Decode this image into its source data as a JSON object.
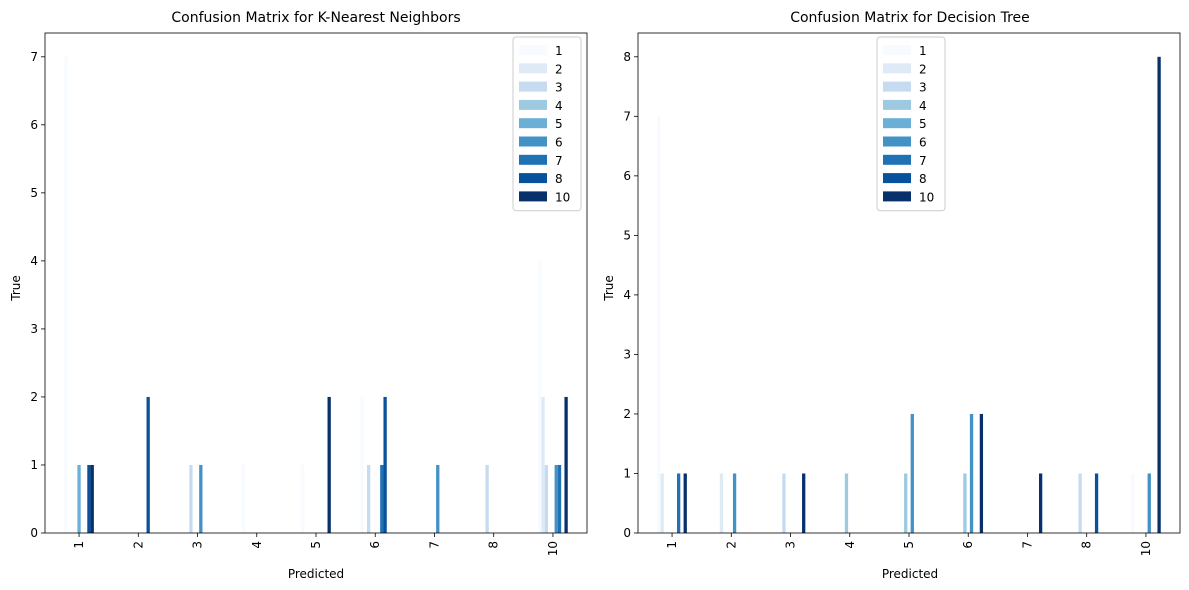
{
  "chart_data": [
    {
      "type": "bar",
      "title": "Confusion Matrix for K-Nearest Neighbors",
      "xlabel": "Predicted",
      "ylabel": "True",
      "categories": [
        "1",
        "2",
        "3",
        "4",
        "5",
        "6",
        "7",
        "8",
        "10"
      ],
      "ylim": [
        0,
        7.35
      ],
      "yticks": [
        0,
        1,
        2,
        3,
        4,
        5,
        6,
        7
      ],
      "legend_position": "top-right",
      "series": [
        {
          "name": "1",
          "color": "#f7fbff",
          "values": [
            7,
            0,
            0,
            1,
            1,
            2,
            0,
            0,
            4
          ]
        },
        {
          "name": "2",
          "color": "#deebf7",
          "values": [
            0,
            0,
            0,
            0,
            0,
            0,
            0,
            0,
            2
          ]
        },
        {
          "name": "3",
          "color": "#c6dbef",
          "values": [
            0,
            0,
            1,
            0,
            0,
            1,
            0,
            1,
            1
          ]
        },
        {
          "name": "4",
          "color": "#9ecae1",
          "values": [
            0,
            0,
            0,
            0,
            0,
            0,
            0,
            0,
            0
          ]
        },
        {
          "name": "5",
          "color": "#6baed6",
          "values": [
            1,
            0,
            0,
            0,
            0,
            0,
            0,
            0,
            0
          ]
        },
        {
          "name": "6",
          "color": "#4292c6",
          "values": [
            0,
            0,
            1,
            0,
            0,
            0,
            1,
            0,
            1
          ]
        },
        {
          "name": "7",
          "color": "#2171b5",
          "values": [
            0,
            0,
            0,
            0,
            0,
            1,
            0,
            0,
            1
          ]
        },
        {
          "name": "8",
          "color": "#08519c",
          "values": [
            1,
            2,
            0,
            0,
            0,
            2,
            0,
            0,
            0
          ]
        },
        {
          "name": "10",
          "color": "#08306b",
          "values": [
            1,
            0,
            0,
            0,
            2,
            0,
            0,
            0,
            2
          ]
        }
      ]
    },
    {
      "type": "bar",
      "title": "Confusion Matrix for Decision Tree",
      "xlabel": "Predicted",
      "ylabel": "True",
      "categories": [
        "1",
        "2",
        "3",
        "4",
        "5",
        "6",
        "7",
        "8",
        "10"
      ],
      "ylim": [
        0,
        8.4
      ],
      "yticks": [
        0,
        1,
        2,
        3,
        4,
        5,
        6,
        7,
        8
      ],
      "legend_position": "upper center",
      "series": [
        {
          "name": "1",
          "color": "#f7fbff",
          "values": [
            7,
            0,
            0,
            0,
            0,
            0,
            0,
            0,
            1
          ]
        },
        {
          "name": "2",
          "color": "#deebf7",
          "values": [
            1,
            1,
            0,
            0,
            0,
            0,
            0,
            0,
            0
          ]
        },
        {
          "name": "3",
          "color": "#c6dbef",
          "values": [
            0,
            0,
            1,
            0,
            0,
            0,
            0,
            1,
            0
          ]
        },
        {
          "name": "4",
          "color": "#9ecae1",
          "values": [
            0,
            0,
            0,
            1,
            1,
            1,
            0,
            0,
            0
          ]
        },
        {
          "name": "5",
          "color": "#6baed6",
          "values": [
            0,
            0,
            0,
            0,
            0,
            0,
            0,
            0,
            0
          ]
        },
        {
          "name": "6",
          "color": "#4292c6",
          "values": [
            0,
            1,
            0,
            0,
            2,
            2,
            0,
            0,
            1
          ]
        },
        {
          "name": "7",
          "color": "#2171b5",
          "values": [
            1,
            0,
            0,
            0,
            0,
            0,
            0,
            0,
            0
          ]
        },
        {
          "name": "8",
          "color": "#08519c",
          "values": [
            0,
            0,
            0,
            0,
            0,
            0,
            0,
            1,
            0
          ]
        },
        {
          "name": "10",
          "color": "#08306b",
          "values": [
            1,
            0,
            1,
            0,
            0,
            2,
            1,
            0,
            8
          ]
        }
      ]
    }
  ]
}
